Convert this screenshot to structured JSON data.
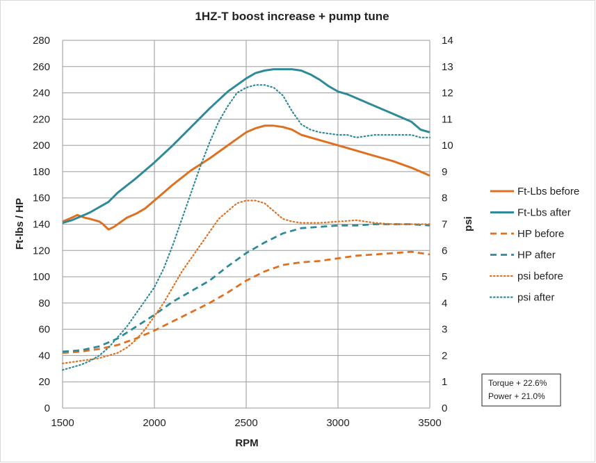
{
  "chart_data": {
    "type": "line",
    "title": "1HZ-T  boost increase + pump tune",
    "xlabel": "RPM",
    "ylabel": "Ft-lbs / HP",
    "y2label": "psi",
    "xlim": [
      1500,
      3500
    ],
    "ylim": [
      0,
      280
    ],
    "y2lim": [
      0,
      14
    ],
    "xticks": [
      1500,
      2000,
      2500,
      3000,
      3500
    ],
    "yticks": [
      0,
      20,
      40,
      60,
      80,
      100,
      120,
      140,
      160,
      180,
      200,
      220,
      240,
      260,
      280
    ],
    "y2ticks": [
      0,
      1,
      2,
      3,
      4,
      5,
      6,
      7,
      8,
      9,
      10,
      11,
      12,
      13,
      14
    ],
    "grid": true,
    "legend_position": "right",
    "series": [
      {
        "name": "Ft-Lbs before",
        "axis": "left",
        "style": "solid",
        "color": "#E07020",
        "x": [
          1500,
          1550,
          1580,
          1620,
          1650,
          1700,
          1720,
          1750,
          1780,
          1850,
          1900,
          1950,
          2000,
          2100,
          2200,
          2300,
          2400,
          2450,
          2500,
          2550,
          2600,
          2650,
          2700,
          2750,
          2800,
          2900,
          3000,
          3100,
          3200,
          3300,
          3400,
          3450,
          3500
        ],
        "values": [
          142,
          145,
          147,
          145,
          144,
          142,
          140,
          136,
          138,
          145,
          148,
          152,
          158,
          170,
          181,
          190,
          200,
          205,
          210,
          213,
          215,
          215,
          214,
          212,
          208,
          204,
          200,
          196,
          192,
          188,
          183,
          180,
          177
        ]
      },
      {
        "name": "Ft-Lbs after",
        "axis": "left",
        "style": "solid",
        "color": "#2E8A99",
        "x": [
          1500,
          1550,
          1600,
          1650,
          1700,
          1750,
          1800,
          1900,
          2000,
          2100,
          2200,
          2300,
          2400,
          2500,
          2550,
          2600,
          2650,
          2700,
          2750,
          2800,
          2850,
          2900,
          2950,
          3000,
          3050,
          3100,
          3200,
          3300,
          3400,
          3450,
          3500
        ],
        "values": [
          141,
          143,
          146,
          149,
          153,
          157,
          164,
          175,
          187,
          200,
          214,
          228,
          241,
          251,
          255,
          257,
          258,
          258,
          258,
          257,
          254,
          250,
          245,
          241,
          239,
          236,
          230,
          224,
          218,
          212,
          210
        ]
      },
      {
        "name": "HP before",
        "axis": "left",
        "style": "dashed",
        "color": "#E07020",
        "x": [
          1500,
          1600,
          1700,
          1800,
          1900,
          2000,
          2100,
          2200,
          2300,
          2400,
          2500,
          2600,
          2700,
          2800,
          2900,
          3000,
          3100,
          3200,
          3300,
          3400,
          3500
        ],
        "values": [
          42,
          43,
          45,
          48,
          53,
          59,
          66,
          73,
          80,
          88,
          97,
          104,
          109,
          111,
          112,
          114,
          116,
          117,
          118,
          119,
          117
        ]
      },
      {
        "name": "HP after",
        "axis": "left",
        "style": "dashed",
        "color": "#2E8A99",
        "x": [
          1500,
          1600,
          1700,
          1800,
          1900,
          2000,
          2100,
          2200,
          2300,
          2400,
          2500,
          2600,
          2700,
          2800,
          2900,
          3000,
          3100,
          3200,
          3300,
          3400,
          3500
        ],
        "values": [
          43,
          44,
          47,
          53,
          62,
          71,
          81,
          89,
          97,
          108,
          118,
          126,
          133,
          137,
          138,
          139,
          139,
          140,
          140,
          140,
          139
        ]
      },
      {
        "name": "psi before",
        "axis": "right",
        "style": "dotted",
        "color": "#E07020",
        "x": [
          1500,
          1550,
          1600,
          1650,
          1700,
          1750,
          1800,
          1850,
          1900,
          1950,
          2000,
          2050,
          2100,
          2150,
          2200,
          2250,
          2300,
          2350,
          2400,
          2450,
          2500,
          2550,
          2600,
          2650,
          2700,
          2750,
          2800,
          2900,
          3000,
          3100,
          3200,
          3300,
          3400,
          3500
        ],
        "values": [
          1.7,
          1.75,
          1.8,
          1.85,
          1.9,
          2.0,
          2.1,
          2.3,
          2.6,
          3.0,
          3.5,
          4.0,
          4.6,
          5.2,
          5.7,
          6.2,
          6.7,
          7.2,
          7.5,
          7.8,
          7.9,
          7.9,
          7.8,
          7.5,
          7.2,
          7.1,
          7.05,
          7.05,
          7.1,
          7.15,
          7.05,
          7.0,
          7.0,
          7.0
        ]
      },
      {
        "name": "psi after",
        "axis": "right",
        "style": "dotted",
        "color": "#2E8A99",
        "x": [
          1500,
          1550,
          1600,
          1650,
          1700,
          1750,
          1800,
          1850,
          1900,
          1950,
          2000,
          2050,
          2100,
          2150,
          2200,
          2250,
          2300,
          2350,
          2400,
          2450,
          2500,
          2550,
          2600,
          2650,
          2700,
          2750,
          2800,
          2850,
          2900,
          3000,
          3050,
          3100,
          3200,
          3300,
          3400,
          3450,
          3500
        ],
        "values": [
          1.45,
          1.55,
          1.65,
          1.8,
          2.0,
          2.3,
          2.7,
          3.1,
          3.6,
          4.1,
          4.6,
          5.3,
          6.2,
          7.2,
          8.2,
          9.2,
          10.1,
          10.9,
          11.5,
          12.0,
          12.2,
          12.3,
          12.3,
          12.2,
          11.9,
          11.3,
          10.8,
          10.6,
          10.5,
          10.4,
          10.4,
          10.3,
          10.4,
          10.4,
          10.4,
          10.3,
          10.3
        ]
      }
    ],
    "annotation": {
      "line1": "Torque + 22.6%",
      "line2": "Power + 21.0%"
    }
  }
}
